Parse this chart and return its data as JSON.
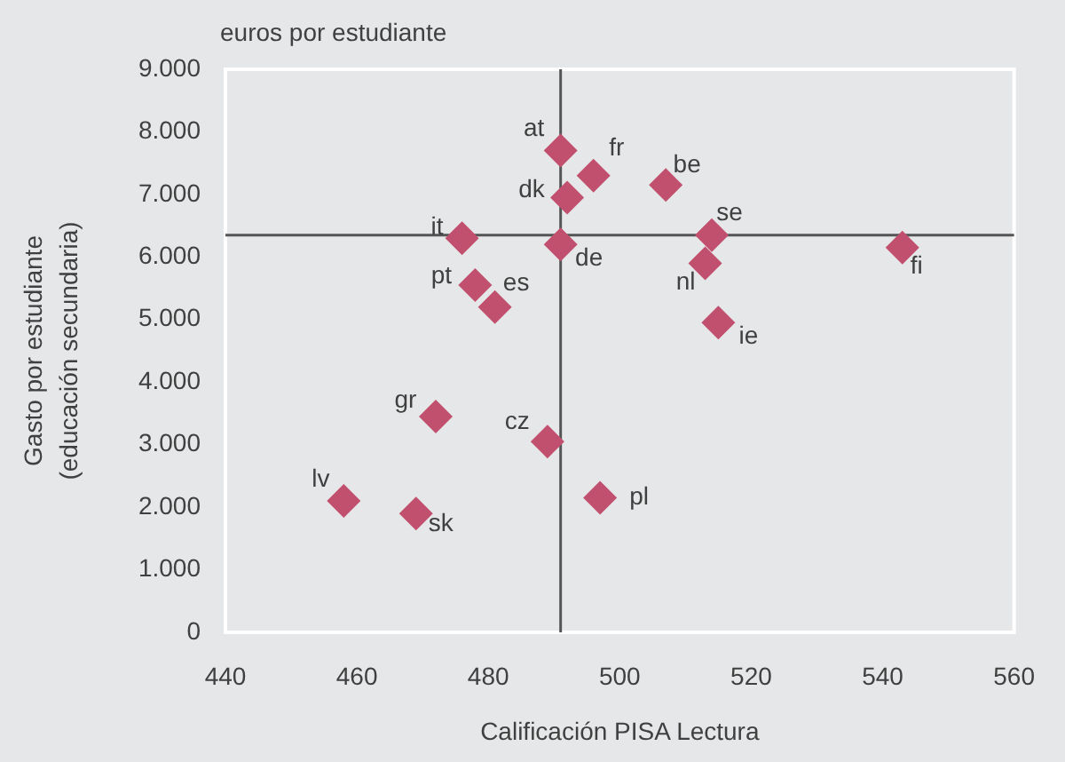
{
  "chart_data": {
    "type": "scatter",
    "xlabel": "Calificación PISA Lectura",
    "ylabel": "Gasto por estudiante\n(educación secundaria)",
    "x": [
      491,
      496,
      492,
      507,
      476,
      491,
      514,
      513,
      543,
      515,
      478,
      481,
      472,
      489,
      458,
      469,
      497
    ],
    "values": [
      7700,
      7300,
      6950,
      7150,
      6300,
      6200,
      6350,
      5900,
      6150,
      4950,
      5550,
      5200,
      3450,
      3050,
      2100,
      1900,
      2150
    ],
    "color": "#c1506f",
    "marker": "diamond",
    "xlim": [
      440,
      560
    ],
    "xticks": [
      440,
      460,
      480,
      500,
      520,
      540,
      560
    ],
    "ylim": [
      0,
      9000
    ],
    "yticks": [
      0,
      {
        "value": 1000,
        "label": "1.000"
      },
      {
        "value": 2000,
        "label": "2.000"
      },
      {
        "value": 3000,
        "label": "3.000"
      },
      {
        "value": 4000,
        "label": "4.000"
      },
      {
        "value": 5000,
        "label": "5.000"
      },
      {
        "value": 6000,
        "label": "6.000"
      },
      {
        "value": 7000,
        "label": "7.000"
      },
      {
        "value": 8000,
        "label": "8.000"
      },
      {
        "value": 9000,
        "label": "9.000"
      }
    ],
    "ref_lines": [
      {
        "axis": "x",
        "value": 491,
        "color": "#555555"
      },
      {
        "axis": "y",
        "value": 6350,
        "color": "#555555"
      }
    ],
    "annotations": [
      "euros por estudiante",
      {
        "text": "at",
        "x": 491,
        "y": 7700
      },
      {
        "text": "fr",
        "x": 496,
        "y": 7300
      },
      {
        "text": "dk",
        "x": 492,
        "y": 6950
      },
      {
        "text": "be",
        "x": 507,
        "y": 7150
      },
      {
        "text": "it",
        "x": 476,
        "y": 6300
      },
      {
        "text": "de",
        "x": 491,
        "y": 6200
      },
      {
        "text": "se",
        "x": 514,
        "y": 6350
      },
      {
        "text": "nl",
        "x": 513,
        "y": 5900
      },
      {
        "text": "fi",
        "x": 543,
        "y": 6150
      },
      {
        "text": "ie",
        "x": 515,
        "y": 4950
      },
      {
        "text": "pt",
        "x": 478,
        "y": 5550
      },
      {
        "text": "es",
        "x": 481,
        "y": 5200
      },
      {
        "text": "gr",
        "x": 472,
        "y": 3450
      },
      {
        "text": "cz",
        "x": 489,
        "y": 3050
      },
      {
        "text": "lv",
        "x": 458,
        "y": 2100
      },
      {
        "text": "sk",
        "x": 469,
        "y": 1900
      },
      {
        "text": "pl",
        "x": 497,
        "y": 2150
      }
    ]
  }
}
